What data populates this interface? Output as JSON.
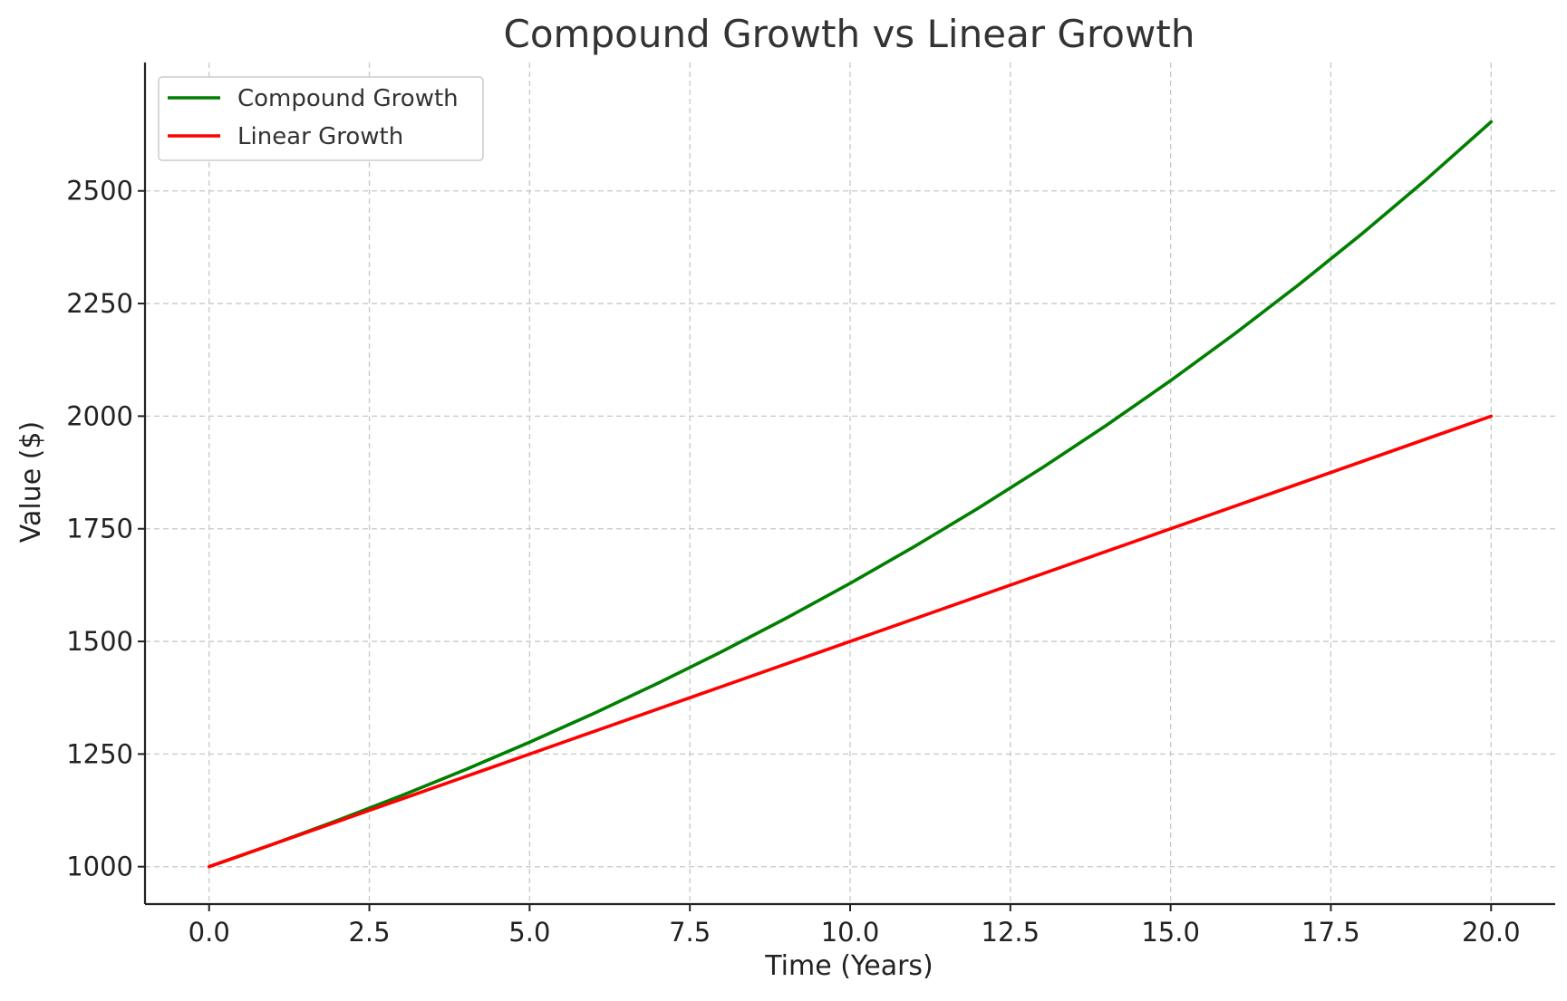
{
  "chart_data": {
    "type": "line",
    "title": "Compound Growth vs Linear Growth",
    "xlabel": "Time (Years)",
    "ylabel": "Value ($)",
    "xlim": [
      -1,
      21
    ],
    "ylim": [
      917,
      2785
    ],
    "x_ticks": [
      "0.0",
      "2.5",
      "5.0",
      "7.5",
      "10.0",
      "12.5",
      "15.0",
      "17.5",
      "20.0"
    ],
    "y_ticks": [
      "1000",
      "1250",
      "1500",
      "1750",
      "2000",
      "2250",
      "2500"
    ],
    "grid": true,
    "legend_position": "top-left",
    "x": [
      0,
      1,
      2,
      3,
      4,
      5,
      6,
      7,
      8,
      9,
      10,
      11,
      12,
      13,
      14,
      15,
      16,
      17,
      18,
      19,
      20
    ],
    "series": [
      {
        "name": "Compound Growth",
        "color": "#007f00",
        "values": [
          1000,
          1050,
          1102.5,
          1157.63,
          1215.51,
          1276.28,
          1340.1,
          1407.1,
          1477.46,
          1551.33,
          1628.89,
          1710.34,
          1795.86,
          1885.65,
          1979.93,
          2078.93,
          2182.87,
          2292.02,
          2406.62,
          2526.95,
          2653.3
        ]
      },
      {
        "name": "Linear Growth",
        "color": "#ff0000",
        "values": [
          1000,
          1050,
          1100,
          1150,
          1200,
          1250,
          1300,
          1350,
          1400,
          1450,
          1500,
          1550,
          1600,
          1650,
          1700,
          1750,
          1800,
          1850,
          1900,
          1950,
          2000
        ]
      }
    ]
  }
}
